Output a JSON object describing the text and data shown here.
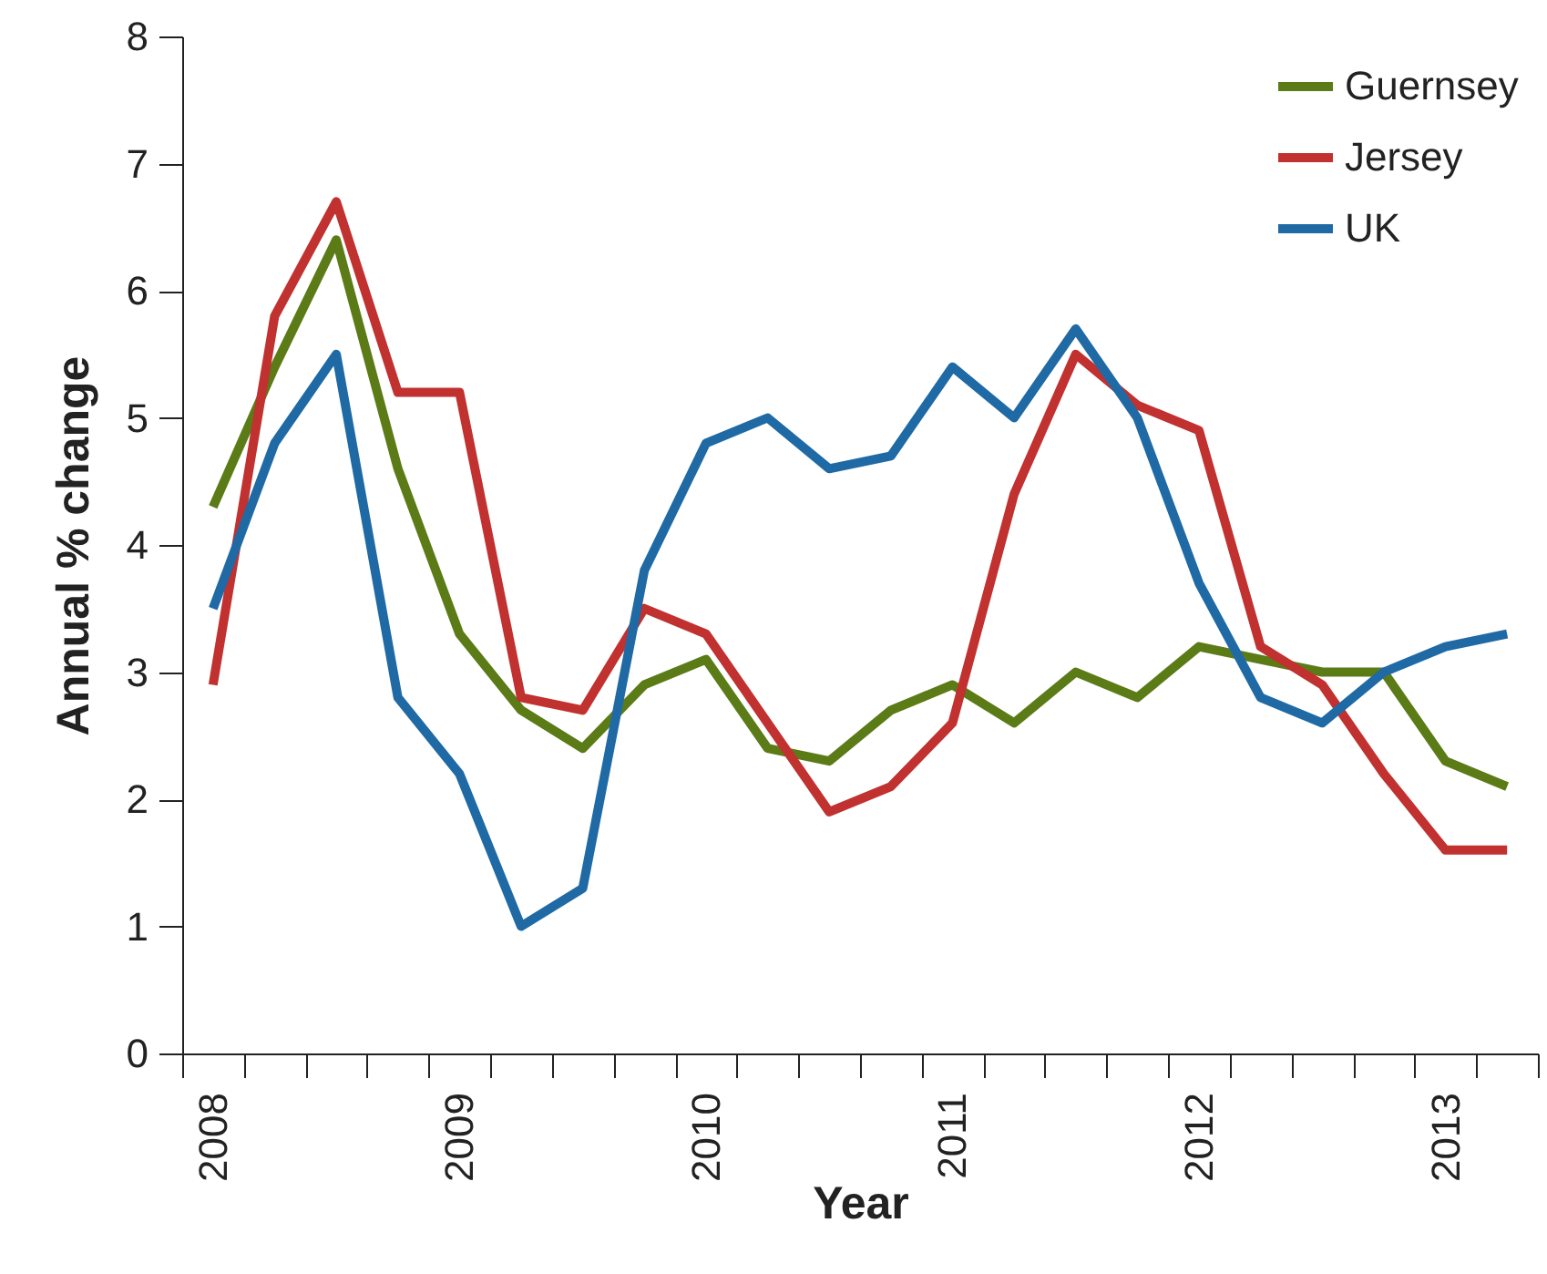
{
  "chart_data": {
    "type": "line",
    "xlabel": "Year",
    "ylabel": "Annual % change",
    "categories": [
      "2008",
      null,
      null,
      null,
      "2009",
      null,
      null,
      null,
      "2010",
      null,
      null,
      null,
      "2011",
      null,
      null,
      null,
      "2012",
      null,
      null,
      null,
      "2013",
      null
    ],
    "series": [
      {
        "name": "Guernsey",
        "color": "#5b7b17",
        "values": [
          4.3,
          5.4,
          6.4,
          4.6,
          3.3,
          2.7,
          2.4,
          2.9,
          3.1,
          2.4,
          2.3,
          2.7,
          2.9,
          2.6,
          3.0,
          2.8,
          3.2,
          3.1,
          3.0,
          3.0,
          2.3,
          2.1
        ]
      },
      {
        "name": "Jersey",
        "color": "#c0312f",
        "values": [
          2.9,
          5.8,
          6.7,
          5.2,
          5.2,
          2.8,
          2.7,
          3.5,
          3.3,
          2.6,
          1.9,
          2.1,
          2.6,
          4.4,
          5.5,
          5.1,
          4.9,
          3.2,
          2.9,
          2.2,
          1.6,
          1.6
        ]
      },
      {
        "name": "UK",
        "color": "#1f6aa5",
        "values": [
          3.5,
          4.8,
          5.5,
          2.8,
          2.2,
          1.0,
          1.3,
          3.8,
          4.8,
          5.0,
          4.6,
          4.7,
          5.4,
          5.0,
          5.7,
          5.0,
          3.7,
          2.8,
          2.6,
          3.0,
          3.2,
          3.3
        ]
      }
    ],
    "ylim": [
      0,
      8
    ],
    "yticks": [
      0,
      1,
      2,
      3,
      4,
      5,
      6,
      7,
      8
    ],
    "grid": false,
    "legend": "top right",
    "marker": "none",
    "line_style": "solid"
  }
}
